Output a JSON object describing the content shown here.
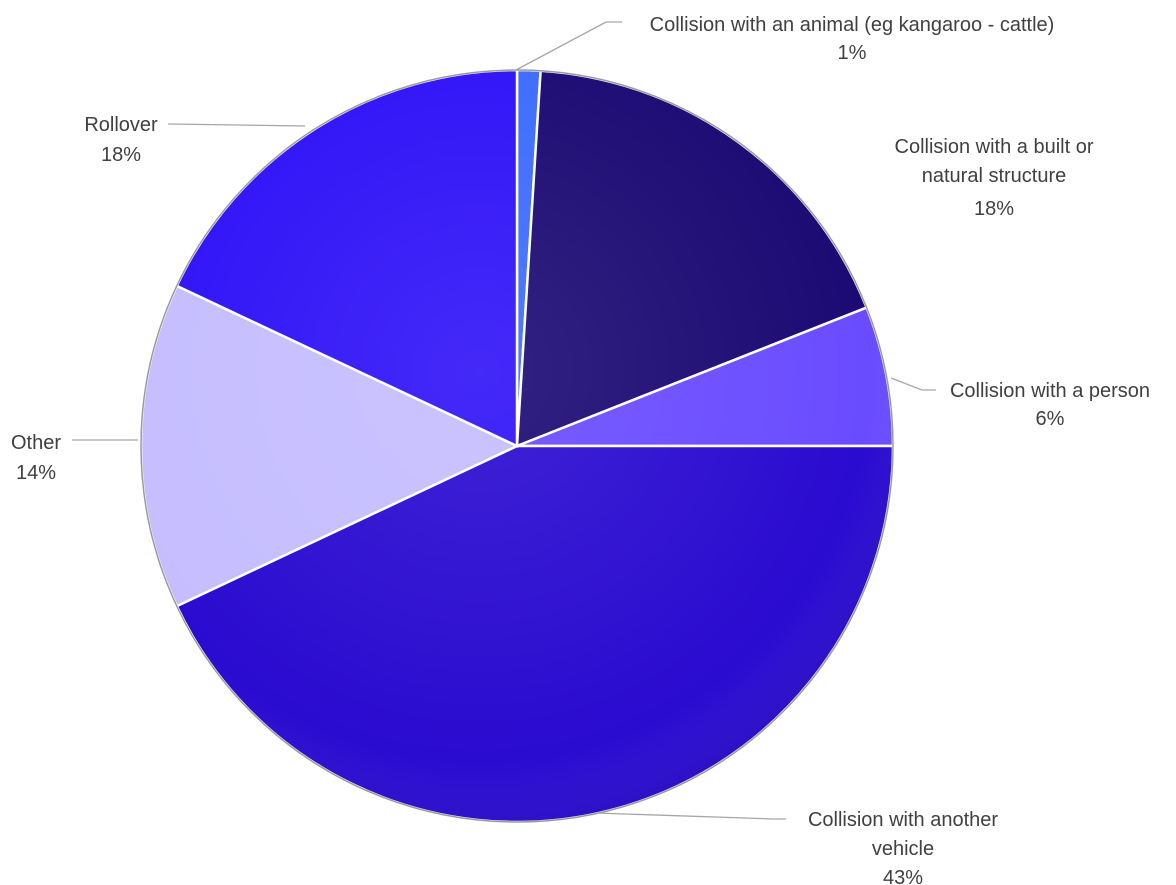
{
  "chart_data": {
    "type": "pie",
    "title": "",
    "slices": [
      {
        "label": "Collision with an animal (eg kangaroo - cattle)",
        "value": 1,
        "value_label": "1%",
        "color": "#3d6bff"
      },
      {
        "label": "Collision with a built or natural structure",
        "value": 18,
        "value_label": "18%",
        "color": "#1b0a73"
      },
      {
        "label": "Collision with a person",
        "value": 6,
        "value_label": "6%",
        "color": "#6a4cff"
      },
      {
        "label": "Collision with another vehicle",
        "value": 43,
        "value_label": "43%",
        "color": "#2a0bd0"
      },
      {
        "label": "Other",
        "value": 14,
        "value_label": "14%",
        "color": "#c5bdff"
      },
      {
        "label": "Rollover",
        "value": 18,
        "value_label": "18%",
        "color": "#2f12f7"
      }
    ]
  }
}
